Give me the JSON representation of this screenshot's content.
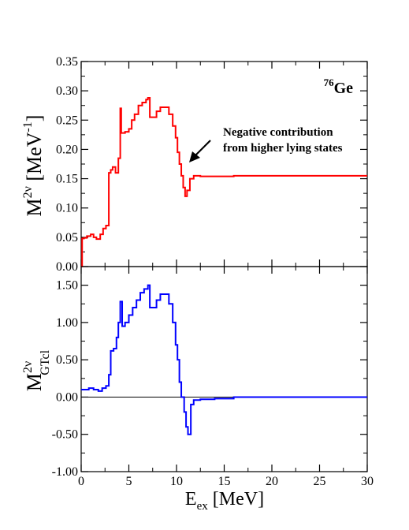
{
  "chart_data": [
    {
      "type": "line",
      "panel": "top",
      "ylabel": {
        "main": "M",
        "sup": "2ν",
        "unit_open": " [MeV",
        "unit_sup": "-1",
        "unit_close": "]"
      },
      "xlim": [
        0,
        30
      ],
      "ylim": [
        0,
        0.35
      ],
      "yticks": [
        "0.00",
        "0.05",
        "0.10",
        "0.15",
        "0.20",
        "0.25",
        "0.30",
        "0.35"
      ],
      "nucleus": {
        "mass": "76",
        "symbol": "Ge"
      },
      "annotation": {
        "line1": "Negative contribution",
        "line2": "from higher lying states"
      },
      "series": [
        {
          "color": "#ff0000",
          "x": [
            0,
            0.1,
            0.3,
            0.6,
            1.0,
            1.3,
            1.6,
            2.0,
            2.3,
            2.6,
            2.9,
            3.1,
            3.3,
            3.6,
            3.9,
            4.1,
            4.2,
            4.3,
            4.6,
            5.0,
            5.3,
            5.6,
            6.0,
            6.4,
            6.8,
            7.0,
            7.2,
            7.5,
            7.9,
            8.3,
            8.7,
            9.2,
            9.6,
            9.9,
            10.1,
            10.3,
            10.5,
            10.7,
            10.9,
            11.1,
            11.4,
            11.8,
            12.5,
            14,
            16,
            20,
            25,
            30
          ],
          "y": [
            0.0,
            0.048,
            0.049,
            0.052,
            0.055,
            0.05,
            0.047,
            0.055,
            0.065,
            0.07,
            0.16,
            0.165,
            0.17,
            0.16,
            0.185,
            0.27,
            0.228,
            0.228,
            0.23,
            0.235,
            0.25,
            0.26,
            0.275,
            0.28,
            0.285,
            0.288,
            0.255,
            0.255,
            0.265,
            0.272,
            0.272,
            0.26,
            0.24,
            0.22,
            0.195,
            0.175,
            0.155,
            0.135,
            0.12,
            0.13,
            0.15,
            0.155,
            0.154,
            0.154,
            0.155,
            0.155,
            0.155,
            0.155
          ]
        }
      ]
    },
    {
      "type": "line",
      "panel": "bottom",
      "ylabel": {
        "main": "M",
        "sup": "2ν",
        "sub": "GTcl"
      },
      "xlabel": {
        "main": "E",
        "sub": "ex",
        "unit": " [MeV]"
      },
      "xlim": [
        0,
        30
      ],
      "ylim": [
        -1.0,
        1.75
      ],
      "yticks": [
        "-1.00",
        "-0.50",
        "0.00",
        "0.50",
        "1.00",
        "1.50"
      ],
      "xticks": [
        "0",
        "5",
        "10",
        "15",
        "20",
        "25",
        "30"
      ],
      "series": [
        {
          "color": "#0000ff",
          "x": [
            0,
            0.3,
            0.8,
            1.3,
            1.8,
            2.2,
            2.6,
            2.9,
            3.1,
            3.4,
            3.7,
            3.9,
            4.1,
            4.3,
            4.6,
            5.0,
            5.4,
            5.8,
            6.2,
            6.6,
            7.0,
            7.2,
            7.5,
            7.9,
            8.3,
            8.7,
            9.2,
            9.6,
            9.9,
            10.1,
            10.3,
            10.5,
            10.8,
            11.0,
            11.2,
            11.5,
            11.8,
            12.5,
            14,
            16,
            20,
            25,
            30
          ],
          "y": [
            0.1,
            0.1,
            0.12,
            0.1,
            0.08,
            0.12,
            0.15,
            0.3,
            0.62,
            0.65,
            0.8,
            1.0,
            1.28,
            0.95,
            1.0,
            1.1,
            1.2,
            1.3,
            1.4,
            1.45,
            1.5,
            1.2,
            1.2,
            1.3,
            1.38,
            1.38,
            1.25,
            1.0,
            0.7,
            0.5,
            0.2,
            0.0,
            -0.2,
            -0.4,
            -0.5,
            -0.1,
            -0.04,
            -0.03,
            -0.02,
            0.0,
            0.0,
            0.0,
            0.0
          ]
        }
      ],
      "zero_line": true
    }
  ]
}
